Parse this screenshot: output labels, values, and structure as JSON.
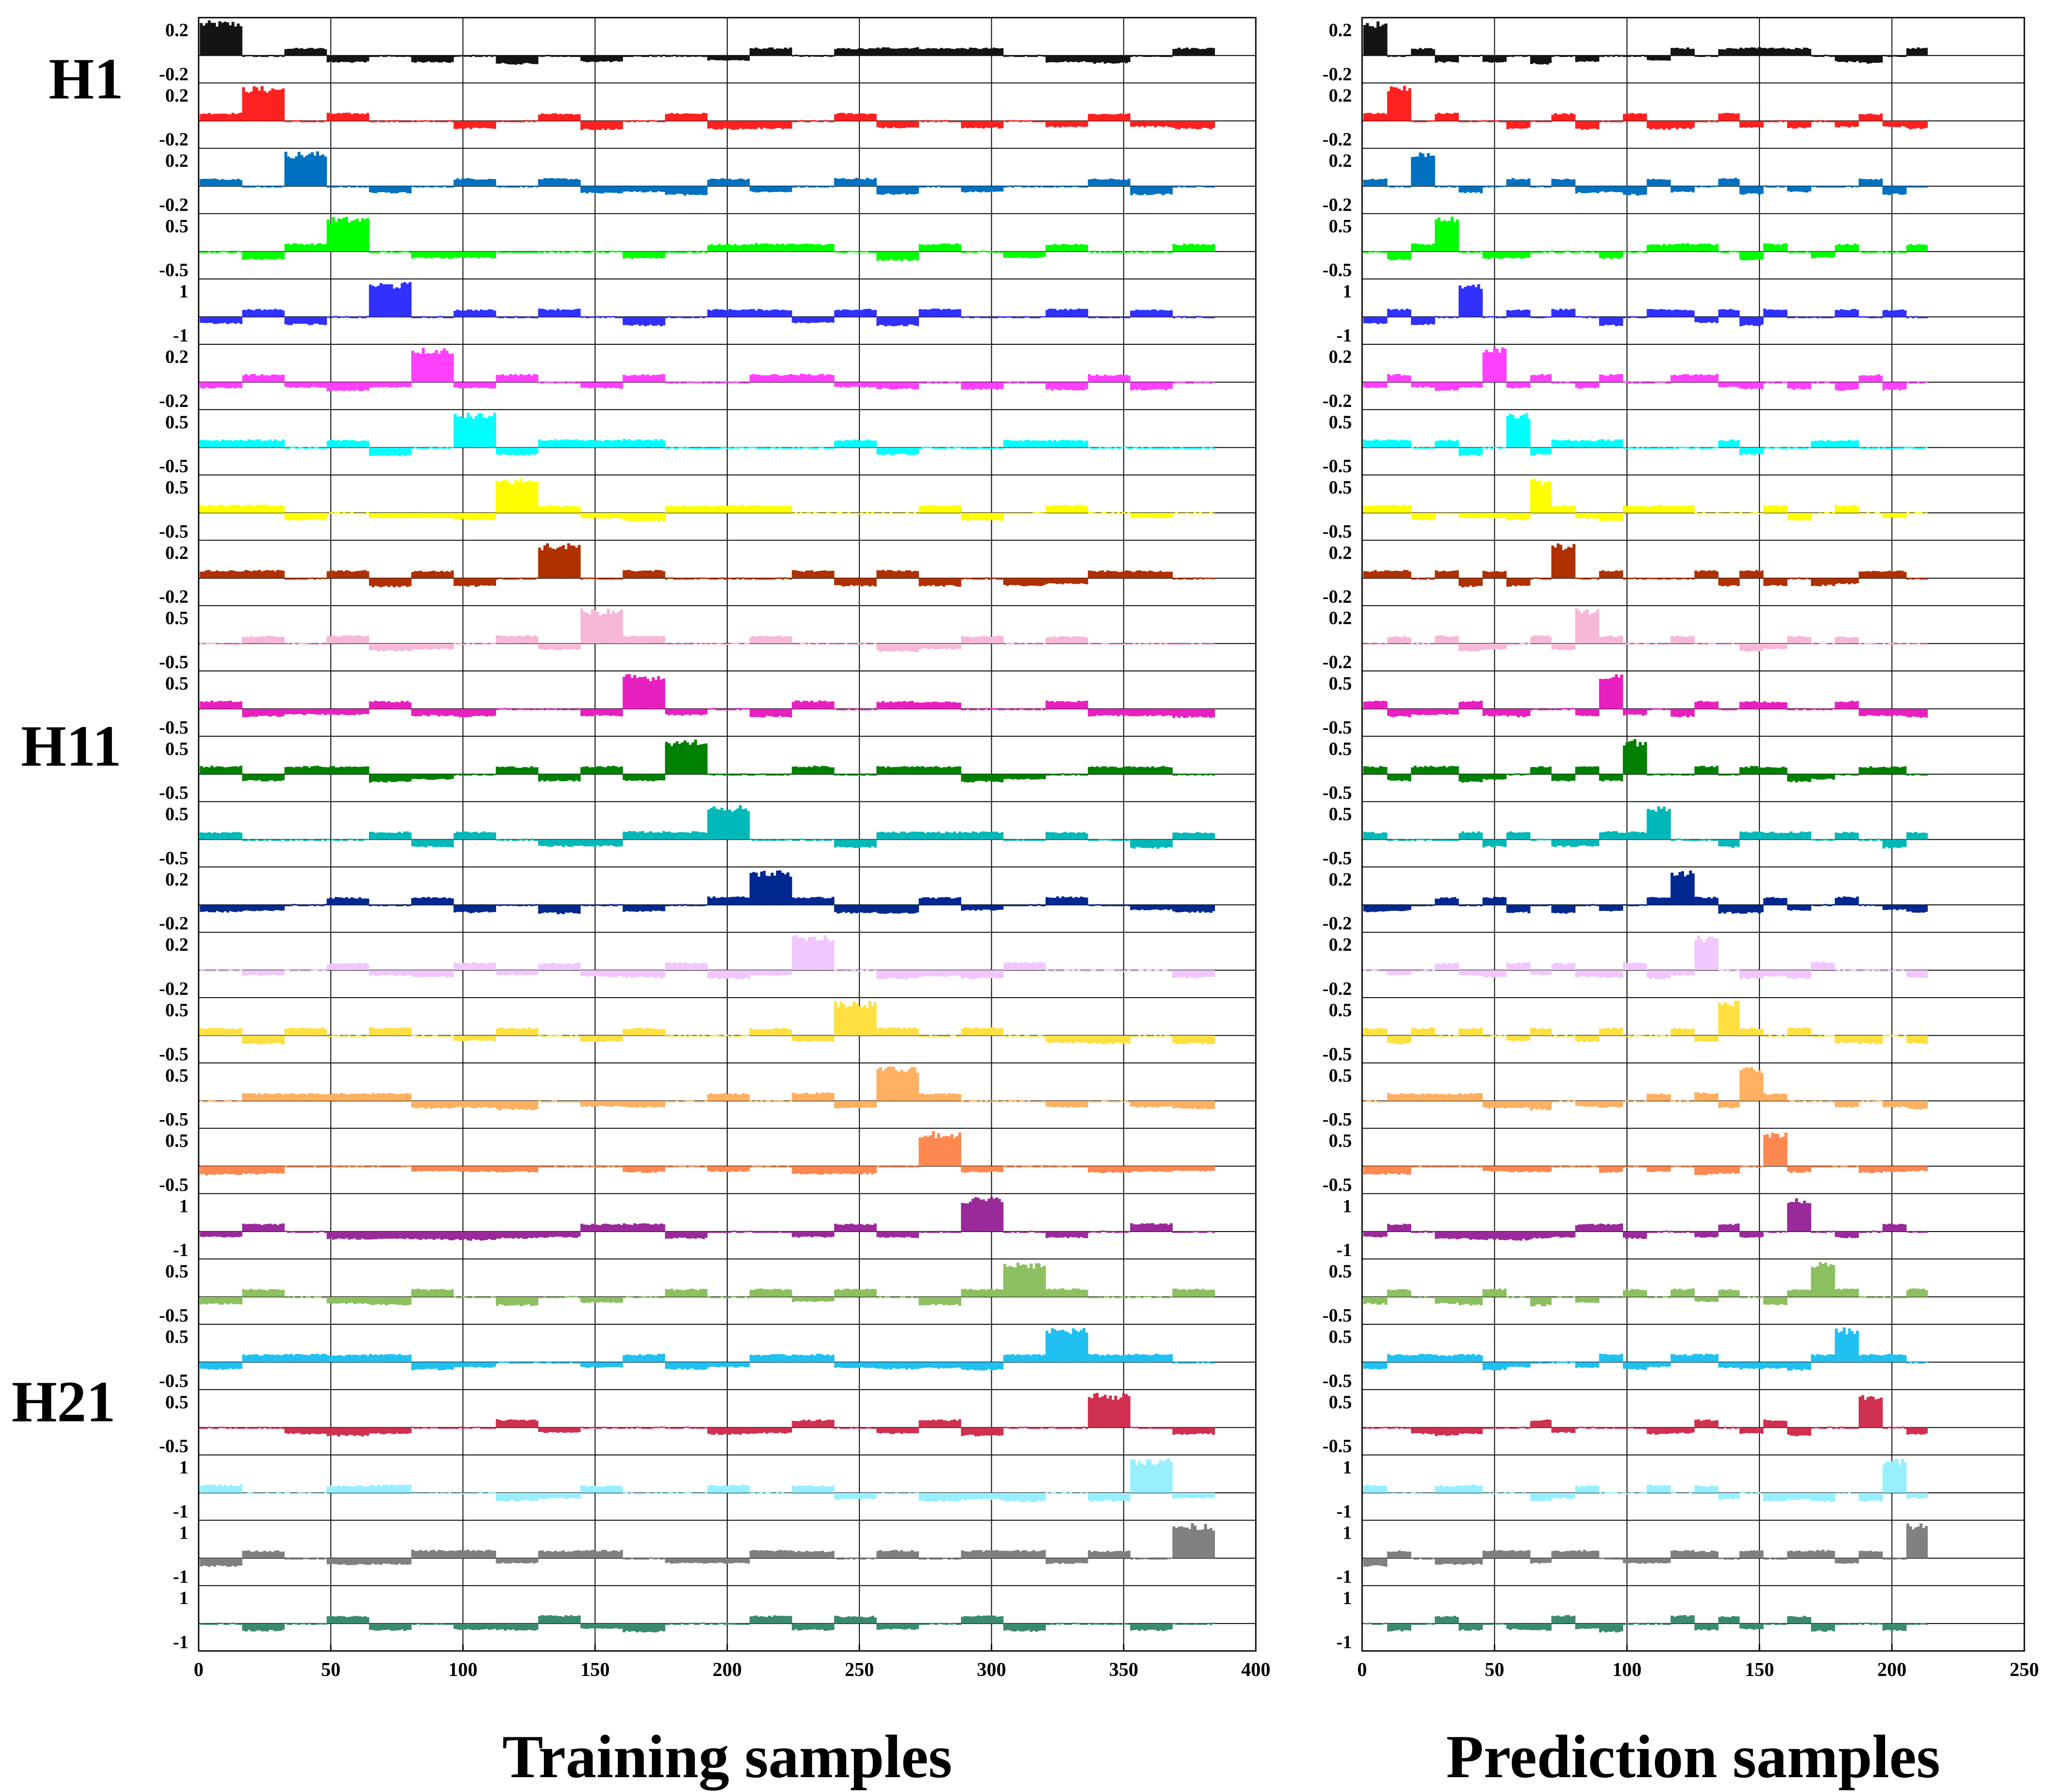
{
  "chart_data": {
    "type": "bar",
    "description_free": true,
    "hlabels": [
      "H1",
      "H11",
      "H21"
    ],
    "row_colors": [
      "#141414",
      "#ff2020",
      "#0071c0",
      "#00ff00",
      "#3030ff",
      "#ff40ff",
      "#00ffff",
      "#ffff00",
      "#b03000",
      "#f7b8d8",
      "#e820c0",
      "#008000",
      "#00b8b8",
      "#002890",
      "#f0c8ff",
      "#ffe040",
      "#ffb060",
      "#ff8850",
      "#9a2a9a",
      "#8cc060",
      "#20c0f0",
      "#d03050",
      "#98f0ff",
      "#808080",
      "#3a8a70"
    ],
    "row_ytick_labels": [
      [
        "0.2",
        "-0.2"
      ],
      [
        "0.2",
        "-0.2"
      ],
      [
        "0.2",
        "-0.2"
      ],
      [
        "0.5",
        "-0.5"
      ],
      [
        "1",
        "-1"
      ],
      [
        "0.2",
        "-0.2"
      ],
      [
        "0.5",
        "-0.5"
      ],
      [
        "0.5",
        "-0.5"
      ],
      [
        "0.2",
        "-0.2"
      ],
      [
        "0.5",
        "-0.5"
      ],
      [
        "0.5",
        "-0.5"
      ],
      [
        "0.5",
        "-0.5"
      ],
      [
        "0.5",
        "-0.5"
      ],
      [
        "0.2",
        "-0.2"
      ],
      [
        "0.2",
        "-0.2"
      ],
      [
        "0.5",
        "-0.5"
      ],
      [
        "0.5",
        "-0.5"
      ],
      [
        "0.5",
        "-0.5"
      ],
      [
        "1",
        "-1"
      ],
      [
        "0.5",
        "-0.5"
      ],
      [
        "0.5",
        "-0.5"
      ],
      [
        "0.5",
        "-0.5"
      ],
      [
        "1",
        "-1"
      ],
      [
        "1",
        "-1"
      ],
      [
        "1",
        "-1"
      ]
    ],
    "panels": [
      {
        "xlabel": "Training samples",
        "xlim": [
          0,
          400
        ],
        "xticks": [
          0,
          50,
          100,
          150,
          200,
          250,
          300,
          350,
          400
        ],
        "xtick_labels": [
          "0",
          "50",
          "100",
          "150",
          "200",
          "250",
          "300",
          "350",
          "400"
        ],
        "samples_per_class": 16,
        "n_samples": 384,
        "grid": true
      },
      {
        "xlabel": "Prediction samples",
        "xlim": [
          0,
          250
        ],
        "xticks": [
          0,
          50,
          100,
          150,
          200,
          250
        ],
        "xtick_labels": [
          "0",
          "50",
          "100",
          "150",
          "200",
          "250"
        ],
        "samples_per_class": 8.5,
        "n_samples": 213,
        "grid": true,
        "row_ytick_overrides": {
          "9": [
            "0.2",
            "-0.2"
          ]
        }
      }
    ]
  }
}
